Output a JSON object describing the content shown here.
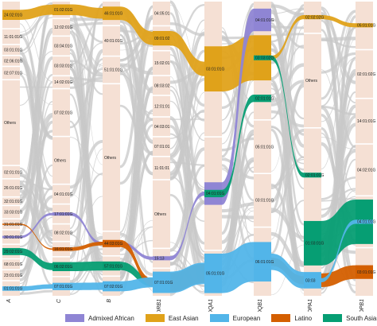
{
  "colors": {
    "bar": "#f5e0d4",
    "gap": "#ffffff",
    "flow": "#c8c8c8",
    "admixed_african": "#8f85d4",
    "east_asian": "#e0a21a",
    "european": "#52b5e9",
    "latino": "#d45f00",
    "south_asian": "#069e73"
  },
  "axes": [
    {
      "id": "A",
      "label": "A",
      "alleles": [
        "24:02:01G",
        "11:01:01G",
        "03:01:01G",
        "02:06:01G",
        "02:07:01G",
        "Others",
        "02:01:01G",
        "26:01:01G",
        "32:01:01G",
        "33:03:01G",
        "31:01:01G",
        "30:01:01G",
        "29:02:01G",
        "68:01:01G",
        "23:01:01G",
        "01:01:01G"
      ]
    },
    {
      "id": "C",
      "label": "C",
      "alleles": [
        "01:02:01G",
        "12:02:01G",
        "03:04:01G",
        "03:03:01G",
        "14:02:01G",
        "07:02:01G",
        "Others",
        "04:01:01G",
        "17:01:01G",
        "08:02:01G",
        "16:01:01G",
        "06:02:01G",
        "07:01:01G"
      ]
    },
    {
      "id": "B",
      "label": "B",
      "alleles": [
        "46:01:01G",
        "40:01:01G",
        "51:01:01G",
        "Others",
        "44:03:01G",
        "57:01:01G",
        "07:02:01G"
      ]
    },
    {
      "id": "DRB1",
      "label": "DRB1",
      "alleles": [
        "04:05:01",
        "09:01:02",
        "15:02:01",
        "08:03:02",
        "12:01:01",
        "04:03:01",
        "07:01:01",
        "11:01:01",
        "Others",
        "15:13",
        "07:01:01G"
      ]
    },
    {
      "id": "DQA1",
      "label": "DQA1",
      "alleles": [
        "03:01:01G",
        "04:01:01G",
        "05:01:01G"
      ]
    },
    {
      "id": "DQB1",
      "label": "DQB1",
      "alleles": [
        "04:01:01G",
        "03:03:02G",
        "02:01:01G",
        "05:01:01G",
        "03:01:01G",
        "06:01:01G"
      ]
    },
    {
      "id": "DPA1",
      "label": "DPA1",
      "alleles": [
        "02:02:02G",
        "Others",
        "02:01:01G",
        "01:03:01G",
        "03:03"
      ]
    },
    {
      "id": "DPB1",
      "label": "DPB1",
      "alleles": [
        "05:01:01G",
        "02:01:02G",
        "14:01:01G",
        "04:02:01G",
        "04:01:01G",
        "03:01:01G"
      ]
    }
  ],
  "legend": [
    {
      "label": "Admixed African",
      "key": "admixed_african"
    },
    {
      "label": "East Asian",
      "key": "east_asian"
    },
    {
      "label": "European",
      "key": "european"
    },
    {
      "label": "Latino",
      "key": "latino"
    },
    {
      "label": "South Asian",
      "key": "south_asian"
    }
  ],
  "highlights": [
    {
      "pop": "east_asian",
      "from": "A.24:02:01G",
      "to": "C.01:02:01G",
      "weight": 1.4
    },
    {
      "pop": "east_asian",
      "from": "C.01:02:01G",
      "to": "B.46:01:01G",
      "weight": 1.5
    },
    {
      "pop": "east_asian",
      "from": "B.46:01:01G",
      "to": "DRB1.09:01:02",
      "weight": 1.3
    },
    {
      "pop": "east_asian",
      "from": "DRB1.09:01:02",
      "to": "DQA1.03:01:01G",
      "weight": 1.4
    },
    {
      "pop": "east_asian",
      "from": "DQA1.03:01:01G",
      "to": "DQB1.03:03:02G",
      "weight": 2.8
    },
    {
      "pop": "east_asian",
      "from": "DQB1.03:03:02G",
      "to": "DPA1.02:02:02G",
      "weight": 0.3
    },
    {
      "pop": "east_asian",
      "from": "DPA1.02:02:02G",
      "to": "DPB1.05:01:01G",
      "weight": 0.3
    },
    {
      "pop": "admixed_african",
      "from": "A.30:01:01G",
      "to": "C.17:01:01G",
      "weight": 0.4
    },
    {
      "pop": "admixed_african",
      "from": "C.17:01:01G",
      "to": "B.44:03:01G",
      "weight": 0.4
    },
    {
      "pop": "admixed_african",
      "from": "B.44:03:01G",
      "to": "DRB1.15:13",
      "weight": 0.4
    },
    {
      "pop": "admixed_african",
      "from": "DRB1.15:13",
      "to": "DQA1.04:01:01G",
      "weight": 0.5
    },
    {
      "pop": "admixed_african",
      "from": "DQA1.04:01:01G",
      "to": "DQB1.04:01:01G",
      "weight": 1.4
    },
    {
      "pop": "south_asian",
      "from": "A.29:02:01G",
      "to": "C.06:02:01G",
      "weight": 1.2
    },
    {
      "pop": "south_asian",
      "from": "C.06:02:01G",
      "to": "B.57:01:01G",
      "weight": 1.1
    },
    {
      "pop": "south_asian",
      "from": "B.57:01:01G",
      "to": "DRB1.07:01:01G",
      "weight": 1.0
    },
    {
      "pop": "south_asian",
      "from": "DRB1.07:01:01G",
      "to": "DQA1.05:01:01G",
      "weight": 1.4
    },
    {
      "pop": "south_asian",
      "from": "DQA1.04:01:01G",
      "to": "DQB1.02:01:01G",
      "weight": 0.4
    },
    {
      "pop": "south_asian",
      "from": "DQB1.03:03:02G",
      "to": "DPA1.02:01:01G",
      "weight": 0.3
    },
    {
      "pop": "south_asian",
      "from": "DPA1.01:03:01G",
      "to": "DPB1.04:01:01G",
      "weight": 2.5
    },
    {
      "pop": "latino",
      "from": "A.31:01:01G",
      "to": "C.16:01:01G",
      "weight": 0.3
    },
    {
      "pop": "latino",
      "from": "C.16:01:01G",
      "to": "B.44:03:01G",
      "weight": 0.6
    },
    {
      "pop": "latino",
      "from": "B.44:03:01G",
      "to": "DRB1.07:01:01G",
      "weight": 0.7
    },
    {
      "pop": "latino",
      "from": "DRB1.07:01:01G",
      "to": "DQA1.05:01:01G",
      "weight": 1.6
    },
    {
      "pop": "latino",
      "from": "DQB1.06:01:01G",
      "to": "DPA1.03:03",
      "weight": 0.6
    },
    {
      "pop": "latino",
      "from": "DPA1.03:03",
      "to": "DPB1.03:01:01G",
      "weight": 1.0
    },
    {
      "pop": "european",
      "from": "A.01:01:01G",
      "to": "C.07:01:01G",
      "weight": 0.7
    },
    {
      "pop": "european",
      "from": "C.07:01:01G",
      "to": "B.07:02:01G",
      "weight": 0.9
    },
    {
      "pop": "european",
      "from": "B.07:02:01G",
      "to": "DRB1.07:01:01G",
      "weight": 1.2
    },
    {
      "pop": "european",
      "from": "DRB1.07:01:01G",
      "to": "DQA1.05:01:01G",
      "weight": 1.8
    },
    {
      "pop": "european",
      "from": "DQA1.05:01:01G",
      "to": "DQB1.06:01:01G",
      "weight": 2.0
    },
    {
      "pop": "european",
      "from": "DQB1.06:01:01G",
      "to": "DPA1.03:03",
      "weight": 1.2
    },
    {
      "pop": "european",
      "from": "DPA1.03:03",
      "to": "DPB1.04:01:01G",
      "weight": 0.3
    }
  ]
}
